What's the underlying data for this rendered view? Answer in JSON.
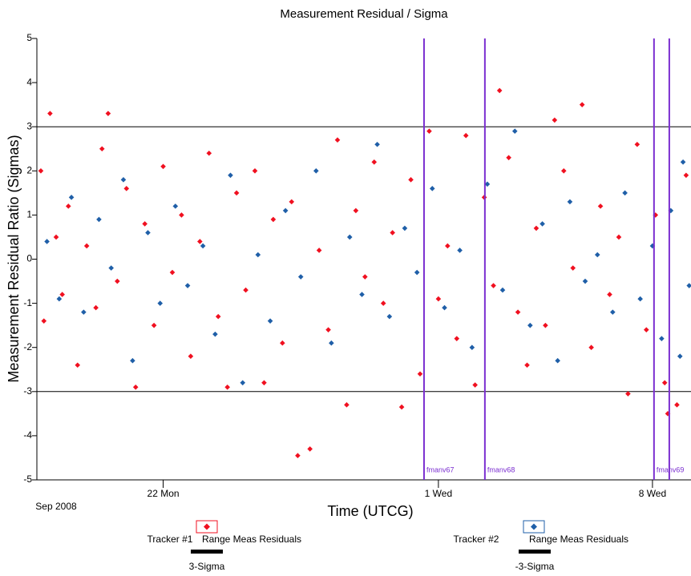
{
  "chart_data": {
    "type": "scatter",
    "title": "Measurement Residual / Sigma",
    "x_label": "Time (UTCG)",
    "y_label": "Measurement Residual Ratio (Sigmas)",
    "x_start_label": "Sep 2008",
    "xlim": [
      17.87,
      39.26
    ],
    "ylim": [
      -5,
      5
    ],
    "xticks": [
      {
        "value": 22,
        "label": "22 Mon"
      },
      {
        "value": 31,
        "label": "1 Wed"
      },
      {
        "value": 38,
        "label": "8 Wed"
      }
    ],
    "yticks": [
      -5,
      -4,
      -3,
      -2,
      -1,
      0,
      1,
      2,
      3,
      4,
      5
    ],
    "reference_lines": [
      {
        "name": "3-Sigma",
        "value": 3,
        "color": "#000000"
      },
      {
        "name": "-3-Sigma",
        "value": -3,
        "color": "#000000"
      }
    ],
    "events": [
      {
        "label": "fmanv67",
        "x": 30.53,
        "color": "#7b2fd0"
      },
      {
        "label": "fmanv68",
        "x": 32.52,
        "color": "#7b2fd0"
      },
      {
        "label": "fmanv69",
        "x": 38.05,
        "color": "#7b2fd0"
      },
      {
        "x": 38.55,
        "color": "#7b2fd0"
      }
    ],
    "series": [
      {
        "group": "Tracker #1",
        "name": "Range Meas Residuals",
        "color": "#f01020",
        "x": [
          18.0,
          18.1,
          18.3,
          18.5,
          18.7,
          18.9,
          19.2,
          19.5,
          19.8,
          20.0,
          20.2,
          20.5,
          20.8,
          21.1,
          21.4,
          21.7,
          22.0,
          22.3,
          22.6,
          22.9,
          23.2,
          23.5,
          23.8,
          24.1,
          24.4,
          24.7,
          25.0,
          25.3,
          25.6,
          25.9,
          26.2,
          26.4,
          26.8,
          27.1,
          27.4,
          27.7,
          28.0,
          28.3,
          28.6,
          28.9,
          29.2,
          29.5,
          29.8,
          30.1,
          30.4,
          30.7,
          31.0,
          31.3,
          31.6,
          31.9,
          32.2,
          32.5,
          32.8,
          33.0,
          33.3,
          33.6,
          33.9,
          34.2,
          34.5,
          34.8,
          35.1,
          35.4,
          35.7,
          36.0,
          36.3,
          36.6,
          36.9,
          37.2,
          37.5,
          37.8,
          38.1,
          38.4,
          38.5,
          38.8,
          39.1
        ],
        "values": [
          2.0,
          -1.4,
          3.3,
          0.5,
          -0.8,
          1.2,
          -2.4,
          0.3,
          -1.1,
          2.5,
          3.3,
          -0.5,
          1.6,
          -2.9,
          0.8,
          -1.5,
          2.1,
          -0.3,
          1.0,
          -2.2,
          0.4,
          2.4,
          -1.3,
          -2.9,
          1.5,
          -0.7,
          2.0,
          -2.8,
          0.9,
          -1.9,
          1.3,
          -4.45,
          -4.3,
          0.2,
          -1.6,
          2.7,
          -3.3,
          1.1,
          -0.4,
          2.2,
          -1.0,
          0.6,
          -3.35,
          1.8,
          -2.6,
          2.9,
          -0.9,
          0.3,
          -1.8,
          2.8,
          -2.85,
          1.4,
          -0.6,
          3.82,
          2.3,
          -1.2,
          -2.4,
          0.7,
          -1.5,
          3.15,
          2.0,
          -0.2,
          3.5,
          -2.0,
          1.2,
          -0.8,
          0.5,
          -3.05,
          2.6,
          -1.6,
          1.0,
          -2.8,
          -3.5,
          -3.3,
          1.9
        ]
      },
      {
        "group": "Tracker #2",
        "name": "Range Meas Residuals",
        "color": "#1f5fa8",
        "x": [
          18.2,
          18.6,
          19.0,
          19.4,
          19.9,
          20.3,
          20.7,
          21.0,
          21.5,
          21.9,
          22.4,
          22.8,
          23.3,
          23.7,
          24.2,
          24.6,
          25.1,
          25.5,
          26.0,
          26.5,
          27.0,
          27.5,
          28.1,
          28.5,
          29.0,
          29.4,
          29.9,
          30.3,
          30.8,
          31.2,
          31.7,
          32.1,
          32.6,
          33.1,
          33.5,
          34.0,
          34.4,
          34.9,
          35.3,
          35.8,
          36.2,
          36.7,
          37.1,
          37.6,
          38.0,
          38.3,
          38.6,
          38.9,
          39.0,
          39.2
        ],
        "values": [
          0.4,
          -0.9,
          1.4,
          -1.2,
          0.9,
          -0.2,
          1.8,
          -2.3,
          0.6,
          -1.0,
          1.2,
          -0.6,
          0.3,
          -1.7,
          1.9,
          -2.8,
          0.1,
          -1.4,
          1.1,
          -0.4,
          2.0,
          -1.9,
          0.5,
          -0.8,
          2.6,
          -1.3,
          0.7,
          -0.3,
          1.6,
          -1.1,
          0.2,
          -2.0,
          1.7,
          -0.7,
          2.9,
          -1.5,
          0.8,
          -2.3,
          1.3,
          -0.5,
          0.1,
          -1.2,
          1.5,
          -0.9,
          0.3,
          -1.8,
          1.1,
          -2.2,
          2.2,
          -0.6
        ]
      }
    ],
    "legend_bar_labels": [
      "3-Sigma",
      "-3-Sigma"
    ]
  }
}
